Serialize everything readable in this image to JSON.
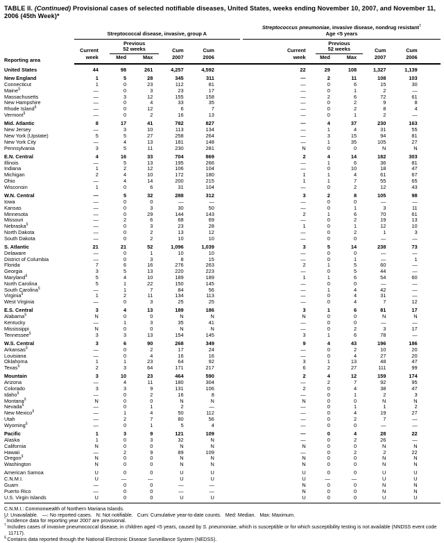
{
  "title": {
    "part1": "TABLE II. ",
    "part2": "(Continued)",
    "part3": " Provisional cases of selected notifiable diseases, United States, weeks ending November 10, 2007, and November 11, 2006 (45th Week)*"
  },
  "table": {
    "reporting_area_label": "Reporting area",
    "group1": {
      "title": "Streptococcal disease, invasive, group A"
    },
    "group2": {
      "title_italic": "Streptococcus pneumoniae",
      "title_rest": ", invasive disease, nondrug resistant",
      "title_sup": "†",
      "subtitle": "Age <5 years"
    },
    "cols": {
      "current": "Current",
      "week": "week",
      "previous1": "Previous",
      "previous2": "52 weeks",
      "med": "Med",
      "max": "Max",
      "cum": "Cum",
      "y2007": "2007",
      "y2006": "2006"
    },
    "rows": [
      {
        "area": "United States",
        "bold": true,
        "first": true,
        "g1": [
          "44",
          "98",
          "261",
          "4,257",
          "4,592"
        ],
        "g2": [
          "22",
          "29",
          "108",
          "1,327",
          "1,139"
        ]
      },
      {
        "area": "New England",
        "bold": true,
        "gap": true,
        "g1": [
          "1",
          "5",
          "28",
          "345",
          "311"
        ],
        "g2": [
          "—",
          "2",
          "11",
          "108",
          "103"
        ]
      },
      {
        "area": "Connecticut",
        "g1": [
          "1",
          "0",
          "23",
          "112",
          "81"
        ],
        "g2": [
          "—",
          "0",
          "6",
          "15",
          "30"
        ]
      },
      {
        "area": "Maine",
        "sup": "§",
        "g1": [
          "—",
          "0",
          "3",
          "23",
          "17"
        ],
        "g2": [
          "—",
          "0",
          "1",
          "2",
          "—"
        ]
      },
      {
        "area": "Massachusetts",
        "g1": [
          "—",
          "3",
          "12",
          "155",
          "158"
        ],
        "g2": [
          "—",
          "2",
          "6",
          "72",
          "61"
        ]
      },
      {
        "area": "New Hampshire",
        "g1": [
          "—",
          "0",
          "4",
          "33",
          "35"
        ],
        "g2": [
          "—",
          "0",
          "2",
          "9",
          "8"
        ]
      },
      {
        "area": "Rhode Island",
        "sup": "§",
        "g1": [
          "—",
          "0",
          "12",
          "6",
          "7"
        ],
        "g2": [
          "—",
          "0",
          "2",
          "8",
          "4"
        ]
      },
      {
        "area": "Vermont",
        "sup": "§",
        "g1": [
          "—",
          "0",
          "2",
          "16",
          "13"
        ],
        "g2": [
          "—",
          "0",
          "1",
          "2",
          "—"
        ]
      },
      {
        "area": "Mid. Atlantic",
        "bold": true,
        "gap": true,
        "g1": [
          "8",
          "17",
          "41",
          "782",
          "827"
        ],
        "g2": [
          "—",
          "4",
          "37",
          "230",
          "163"
        ]
      },
      {
        "area": "New Jersey",
        "g1": [
          "—",
          "3",
          "10",
          "113",
          "134"
        ],
        "g2": [
          "—",
          "1",
          "4",
          "31",
          "55"
        ]
      },
      {
        "area": "New York (Upstate)",
        "g1": [
          "5",
          "5",
          "27",
          "258",
          "264"
        ],
        "g2": [
          "—",
          "3",
          "15",
          "94",
          "81"
        ]
      },
      {
        "area": "New York City",
        "g1": [
          "—",
          "4",
          "13",
          "181",
          "148"
        ],
        "g2": [
          "—",
          "1",
          "35",
          "105",
          "27"
        ]
      },
      {
        "area": "Pennsylvania",
        "g1": [
          "3",
          "5",
          "11",
          "230",
          "281"
        ],
        "g2": [
          "N",
          "0",
          "0",
          "N",
          "N"
        ]
      },
      {
        "area": "E.N. Central",
        "bold": true,
        "gap": true,
        "g1": [
          "4",
          "16",
          "33",
          "704",
          "869"
        ],
        "g2": [
          "2",
          "4",
          "14",
          "182",
          "303"
        ]
      },
      {
        "area": "Illinois",
        "g1": [
          "—",
          "5",
          "13",
          "195",
          "266"
        ],
        "g2": [
          "—",
          "1",
          "6",
          "36",
          "81"
        ]
      },
      {
        "area": "Indiana",
        "g1": [
          "1",
          "2",
          "12",
          "106",
          "104"
        ],
        "g2": [
          "—",
          "0",
          "10",
          "18",
          "47"
        ]
      },
      {
        "area": "Michigan",
        "g1": [
          "2",
          "4",
          "10",
          "172",
          "180"
        ],
        "g2": [
          "1",
          "1",
          "4",
          "61",
          "67"
        ]
      },
      {
        "area": "Ohio",
        "g1": [
          "—",
          "4",
          "14",
          "200",
          "215"
        ],
        "g2": [
          "1",
          "1",
          "7",
          "55",
          "65"
        ]
      },
      {
        "area": "Wisconsin",
        "g1": [
          "1",
          "0",
          "6",
          "31",
          "104"
        ],
        "g2": [
          "—",
          "0",
          "2",
          "12",
          "43"
        ]
      },
      {
        "area": "W.N. Central",
        "bold": true,
        "gap": true,
        "g1": [
          "—",
          "5",
          "32",
          "288",
          "312"
        ],
        "g2": [
          "3",
          "2",
          "8",
          "105",
          "98"
        ]
      },
      {
        "area": "Iowa",
        "g1": [
          "—",
          "0",
          "0",
          "—",
          "—"
        ],
        "g2": [
          "—",
          "0",
          "0",
          "—",
          "—"
        ]
      },
      {
        "area": "Kansas",
        "g1": [
          "—",
          "0",
          "3",
          "30",
          "50"
        ],
        "g2": [
          "—",
          "0",
          "1",
          "3",
          "11"
        ]
      },
      {
        "area": "Minnesota",
        "g1": [
          "—",
          "0",
          "29",
          "144",
          "143"
        ],
        "g2": [
          "2",
          "1",
          "6",
          "70",
          "61"
        ]
      },
      {
        "area": "Missouri",
        "g1": [
          "—",
          "2",
          "6",
          "68",
          "69"
        ],
        "g2": [
          "—",
          "0",
          "2",
          "19",
          "13"
        ]
      },
      {
        "area": "Nebraska",
        "sup": "§",
        "g1": [
          "—",
          "0",
          "3",
          "23",
          "28"
        ],
        "g2": [
          "1",
          "0",
          "1",
          "12",
          "10"
        ]
      },
      {
        "area": "North Dakota",
        "g1": [
          "—",
          "0",
          "2",
          "13",
          "12"
        ],
        "g2": [
          "—",
          "0",
          "2",
          "1",
          "3"
        ]
      },
      {
        "area": "South Dakota",
        "g1": [
          "—",
          "0",
          "2",
          "10",
          "10"
        ],
        "g2": [
          "—",
          "0",
          "0",
          "—",
          "—"
        ]
      },
      {
        "area": "S. Atlantic",
        "bold": true,
        "gap": true,
        "g1": [
          "21",
          "21",
          "52",
          "1,096",
          "1,039"
        ],
        "g2": [
          "3",
          "5",
          "14",
          "238",
          "73"
        ]
      },
      {
        "area": "Delaware",
        "g1": [
          "—",
          "0",
          "1",
          "10",
          "10"
        ],
        "g2": [
          "—",
          "0",
          "0",
          "—",
          "—"
        ]
      },
      {
        "area": "District of Columbia",
        "g1": [
          "—",
          "0",
          "3",
          "8",
          "15"
        ],
        "g2": [
          "—",
          "0",
          "1",
          "—",
          "1"
        ]
      },
      {
        "area": "Florida",
        "g1": [
          "7",
          "6",
          "16",
          "276",
          "263"
        ],
        "g2": [
          "2",
          "1",
          "5",
          "60",
          "—"
        ]
      },
      {
        "area": "Georgia",
        "g1": [
          "3",
          "5",
          "13",
          "220",
          "223"
        ],
        "g2": [
          "—",
          "0",
          "5",
          "44",
          "—"
        ]
      },
      {
        "area": "Maryland",
        "sup": "§",
        "g1": [
          "5",
          "4",
          "10",
          "189",
          "189"
        ],
        "g2": [
          "1",
          "1",
          "6",
          "54",
          "60"
        ]
      },
      {
        "area": "North Carolina",
        "g1": [
          "5",
          "1",
          "22",
          "150",
          "145"
        ],
        "g2": [
          "—",
          "0",
          "0",
          "—",
          "—"
        ]
      },
      {
        "area": "South Carolina",
        "sup": "§",
        "g1": [
          "—",
          "1",
          "7",
          "84",
          "56"
        ],
        "g2": [
          "—",
          "1",
          "4",
          "42",
          "—"
        ]
      },
      {
        "area": "Virginia",
        "sup": "§",
        "g1": [
          "1",
          "2",
          "11",
          "134",
          "113"
        ],
        "g2": [
          "—",
          "0",
          "4",
          "31",
          "—"
        ]
      },
      {
        "area": "West Virginia",
        "g1": [
          "—",
          "0",
          "3",
          "25",
          "25"
        ],
        "g2": [
          "—",
          "0",
          "4",
          "7",
          "12"
        ]
      },
      {
        "area": "E.S. Central",
        "bold": true,
        "gap": true,
        "g1": [
          "3",
          "4",
          "13",
          "189",
          "186"
        ],
        "g2": [
          "3",
          "1",
          "6",
          "81",
          "17"
        ]
      },
      {
        "area": "Alabama",
        "sup": "§",
        "g1": [
          "N",
          "0",
          "0",
          "N",
          "N"
        ],
        "g2": [
          "N",
          "0",
          "0",
          "N",
          "N"
        ]
      },
      {
        "area": "Kentucky",
        "g1": [
          "—",
          "1",
          "3",
          "35",
          "41"
        ],
        "g2": [
          "—",
          "0",
          "0",
          "—",
          "—"
        ]
      },
      {
        "area": "Mississippi",
        "g1": [
          "N",
          "0",
          "0",
          "N",
          "N"
        ],
        "g2": [
          "—",
          "0",
          "2",
          "3",
          "17"
        ]
      },
      {
        "area": "Tennessee",
        "sup": "§",
        "g1": [
          "3",
          "3",
          "13",
          "154",
          "145"
        ],
        "g2": [
          "3",
          "1",
          "6",
          "78",
          "—"
        ]
      },
      {
        "area": "W.S. Central",
        "bold": true,
        "gap": true,
        "g1": [
          "3",
          "6",
          "90",
          "268",
          "349"
        ],
        "g2": [
          "9",
          "4",
          "43",
          "196",
          "186"
        ]
      },
      {
        "area": "Arkansas",
        "sup": "§",
        "g1": [
          "—",
          "0",
          "2",
          "17",
          "24"
        ],
        "g2": [
          "—",
          "0",
          "2",
          "10",
          "20"
        ]
      },
      {
        "area": "Louisiana",
        "g1": [
          "—",
          "0",
          "4",
          "16",
          "16"
        ],
        "g2": [
          "—",
          "0",
          "4",
          "27",
          "20"
        ]
      },
      {
        "area": "Oklahoma",
        "g1": [
          "1",
          "1",
          "23",
          "64",
          "92"
        ],
        "g2": [
          "3",
          "1",
          "13",
          "48",
          "47"
        ]
      },
      {
        "area": "Texas",
        "sup": "§",
        "g1": [
          "2",
          "3",
          "64",
          "171",
          "217"
        ],
        "g2": [
          "6",
          "2",
          "27",
          "111",
          "99"
        ]
      },
      {
        "area": "Mountain",
        "bold": true,
        "gap": true,
        "g1": [
          "3",
          "10",
          "23",
          "464",
          "590"
        ],
        "g2": [
          "2",
          "4",
          "12",
          "159",
          "174"
        ]
      },
      {
        "area": "Arizona",
        "g1": [
          "—",
          "4",
          "11",
          "180",
          "304"
        ],
        "g2": [
          "—",
          "2",
          "7",
          "92",
          "95"
        ]
      },
      {
        "area": "Colorado",
        "g1": [
          "3",
          "3",
          "9",
          "131",
          "106"
        ],
        "g2": [
          "2",
          "0",
          "4",
          "38",
          "47"
        ]
      },
      {
        "area": "Idaho",
        "sup": "§",
        "g1": [
          "—",
          "0",
          "2",
          "16",
          "8"
        ],
        "g2": [
          "—",
          "0",
          "1",
          "2",
          "3"
        ]
      },
      {
        "area": "Montana",
        "sup": "§",
        "g1": [
          "N",
          "0",
          "0",
          "N",
          "N"
        ],
        "g2": [
          "N",
          "0",
          "0",
          "N",
          "N"
        ]
      },
      {
        "area": "Nevada",
        "sup": "§",
        "g1": [
          "—",
          "0",
          "1",
          "2",
          "—"
        ],
        "g2": [
          "—",
          "0",
          "1",
          "1",
          "2"
        ]
      },
      {
        "area": "New Mexico",
        "sup": "§",
        "g1": [
          "—",
          "1",
          "4",
          "50",
          "112"
        ],
        "g2": [
          "—",
          "0",
          "4",
          "19",
          "27"
        ]
      },
      {
        "area": "Utah",
        "g1": [
          "—",
          "2",
          "7",
          "80",
          "56"
        ],
        "g2": [
          "—",
          "0",
          "2",
          "7",
          "—"
        ]
      },
      {
        "area": "Wyoming",
        "sup": "§",
        "g1": [
          "—",
          "0",
          "1",
          "5",
          "4"
        ],
        "g2": [
          "—",
          "0",
          "0",
          "—",
          "—"
        ]
      },
      {
        "area": "Pacific",
        "bold": true,
        "gap": true,
        "g1": [
          "1",
          "3",
          "9",
          "121",
          "109"
        ],
        "g2": [
          "—",
          "0",
          "4",
          "28",
          "22"
        ]
      },
      {
        "area": "Alaska",
        "g1": [
          "1",
          "0",
          "3",
          "32",
          "N"
        ],
        "g2": [
          "—",
          "0",
          "2",
          "26",
          "—"
        ]
      },
      {
        "area": "California",
        "g1": [
          "N",
          "0",
          "0",
          "N",
          "N"
        ],
        "g2": [
          "N",
          "0",
          "0",
          "N",
          "N"
        ]
      },
      {
        "area": "Hawaii",
        "g1": [
          "—",
          "2",
          "9",
          "89",
          "109"
        ],
        "g2": [
          "—",
          "0",
          "2",
          "2",
          "22"
        ]
      },
      {
        "area": "Oregon",
        "sup": "§",
        "g1": [
          "N",
          "0",
          "0",
          "N",
          "N"
        ],
        "g2": [
          "N",
          "0",
          "0",
          "N",
          "N"
        ]
      },
      {
        "area": "Washington",
        "g1": [
          "N",
          "0",
          "0",
          "N",
          "N"
        ],
        "g2": [
          "N",
          "0",
          "0",
          "N",
          "N"
        ]
      },
      {
        "area": "American Samoa",
        "gap": true,
        "g1": [
          "U",
          "0",
          "0",
          "U",
          "U"
        ],
        "g2": [
          "U",
          "0",
          "0",
          "U",
          "U"
        ]
      },
      {
        "area": "C.N.M.I.",
        "g1": [
          "U",
          "—",
          "—",
          "U",
          "U"
        ],
        "g2": [
          "U",
          "—",
          "—",
          "U",
          "U"
        ]
      },
      {
        "area": "Guam",
        "g1": [
          "—",
          "0",
          "0",
          "—",
          "—"
        ],
        "g2": [
          "N",
          "0",
          "0",
          "N",
          "N"
        ]
      },
      {
        "area": "Puerto Rico",
        "g1": [
          "—",
          "0",
          "0",
          "—",
          "—"
        ],
        "g2": [
          "N",
          "0",
          "0",
          "N",
          "N"
        ]
      },
      {
        "area": "U.S. Virgin Islands",
        "g1": [
          "U",
          "0",
          "0",
          "U",
          "U"
        ],
        "g2": [
          "U",
          "0",
          "0",
          "U",
          "U"
        ]
      }
    ]
  },
  "footnotes": [
    {
      "marker": "",
      "text": "C.N.M.I.: Commonwealth of Northern Mariana Islands."
    },
    {
      "marker": "",
      "text": "U: Unavailable.   —: No reported cases.   N: Not notifiable.   Cum: Cumulative year-to-date counts.   Med: Median.   Max: Maximum."
    },
    {
      "marker": "*",
      "text": "Incidence data for reporting year 2007 are provisional."
    },
    {
      "marker": "†",
      "parts": [
        {
          "text": "Includes cases of invasive pneumococcal disease, in children aged <5 years, caused by "
        },
        {
          "text": "S. pneumoniae",
          "italic": true
        },
        {
          "text": ", which is susceptible or for which susceptibility testing is not available (NNDSS event code 11717)."
        }
      ]
    },
    {
      "marker": "§",
      "text": "Contains data reported through the National Electronic Disease Surveillance System (NEDSS)."
    }
  ]
}
